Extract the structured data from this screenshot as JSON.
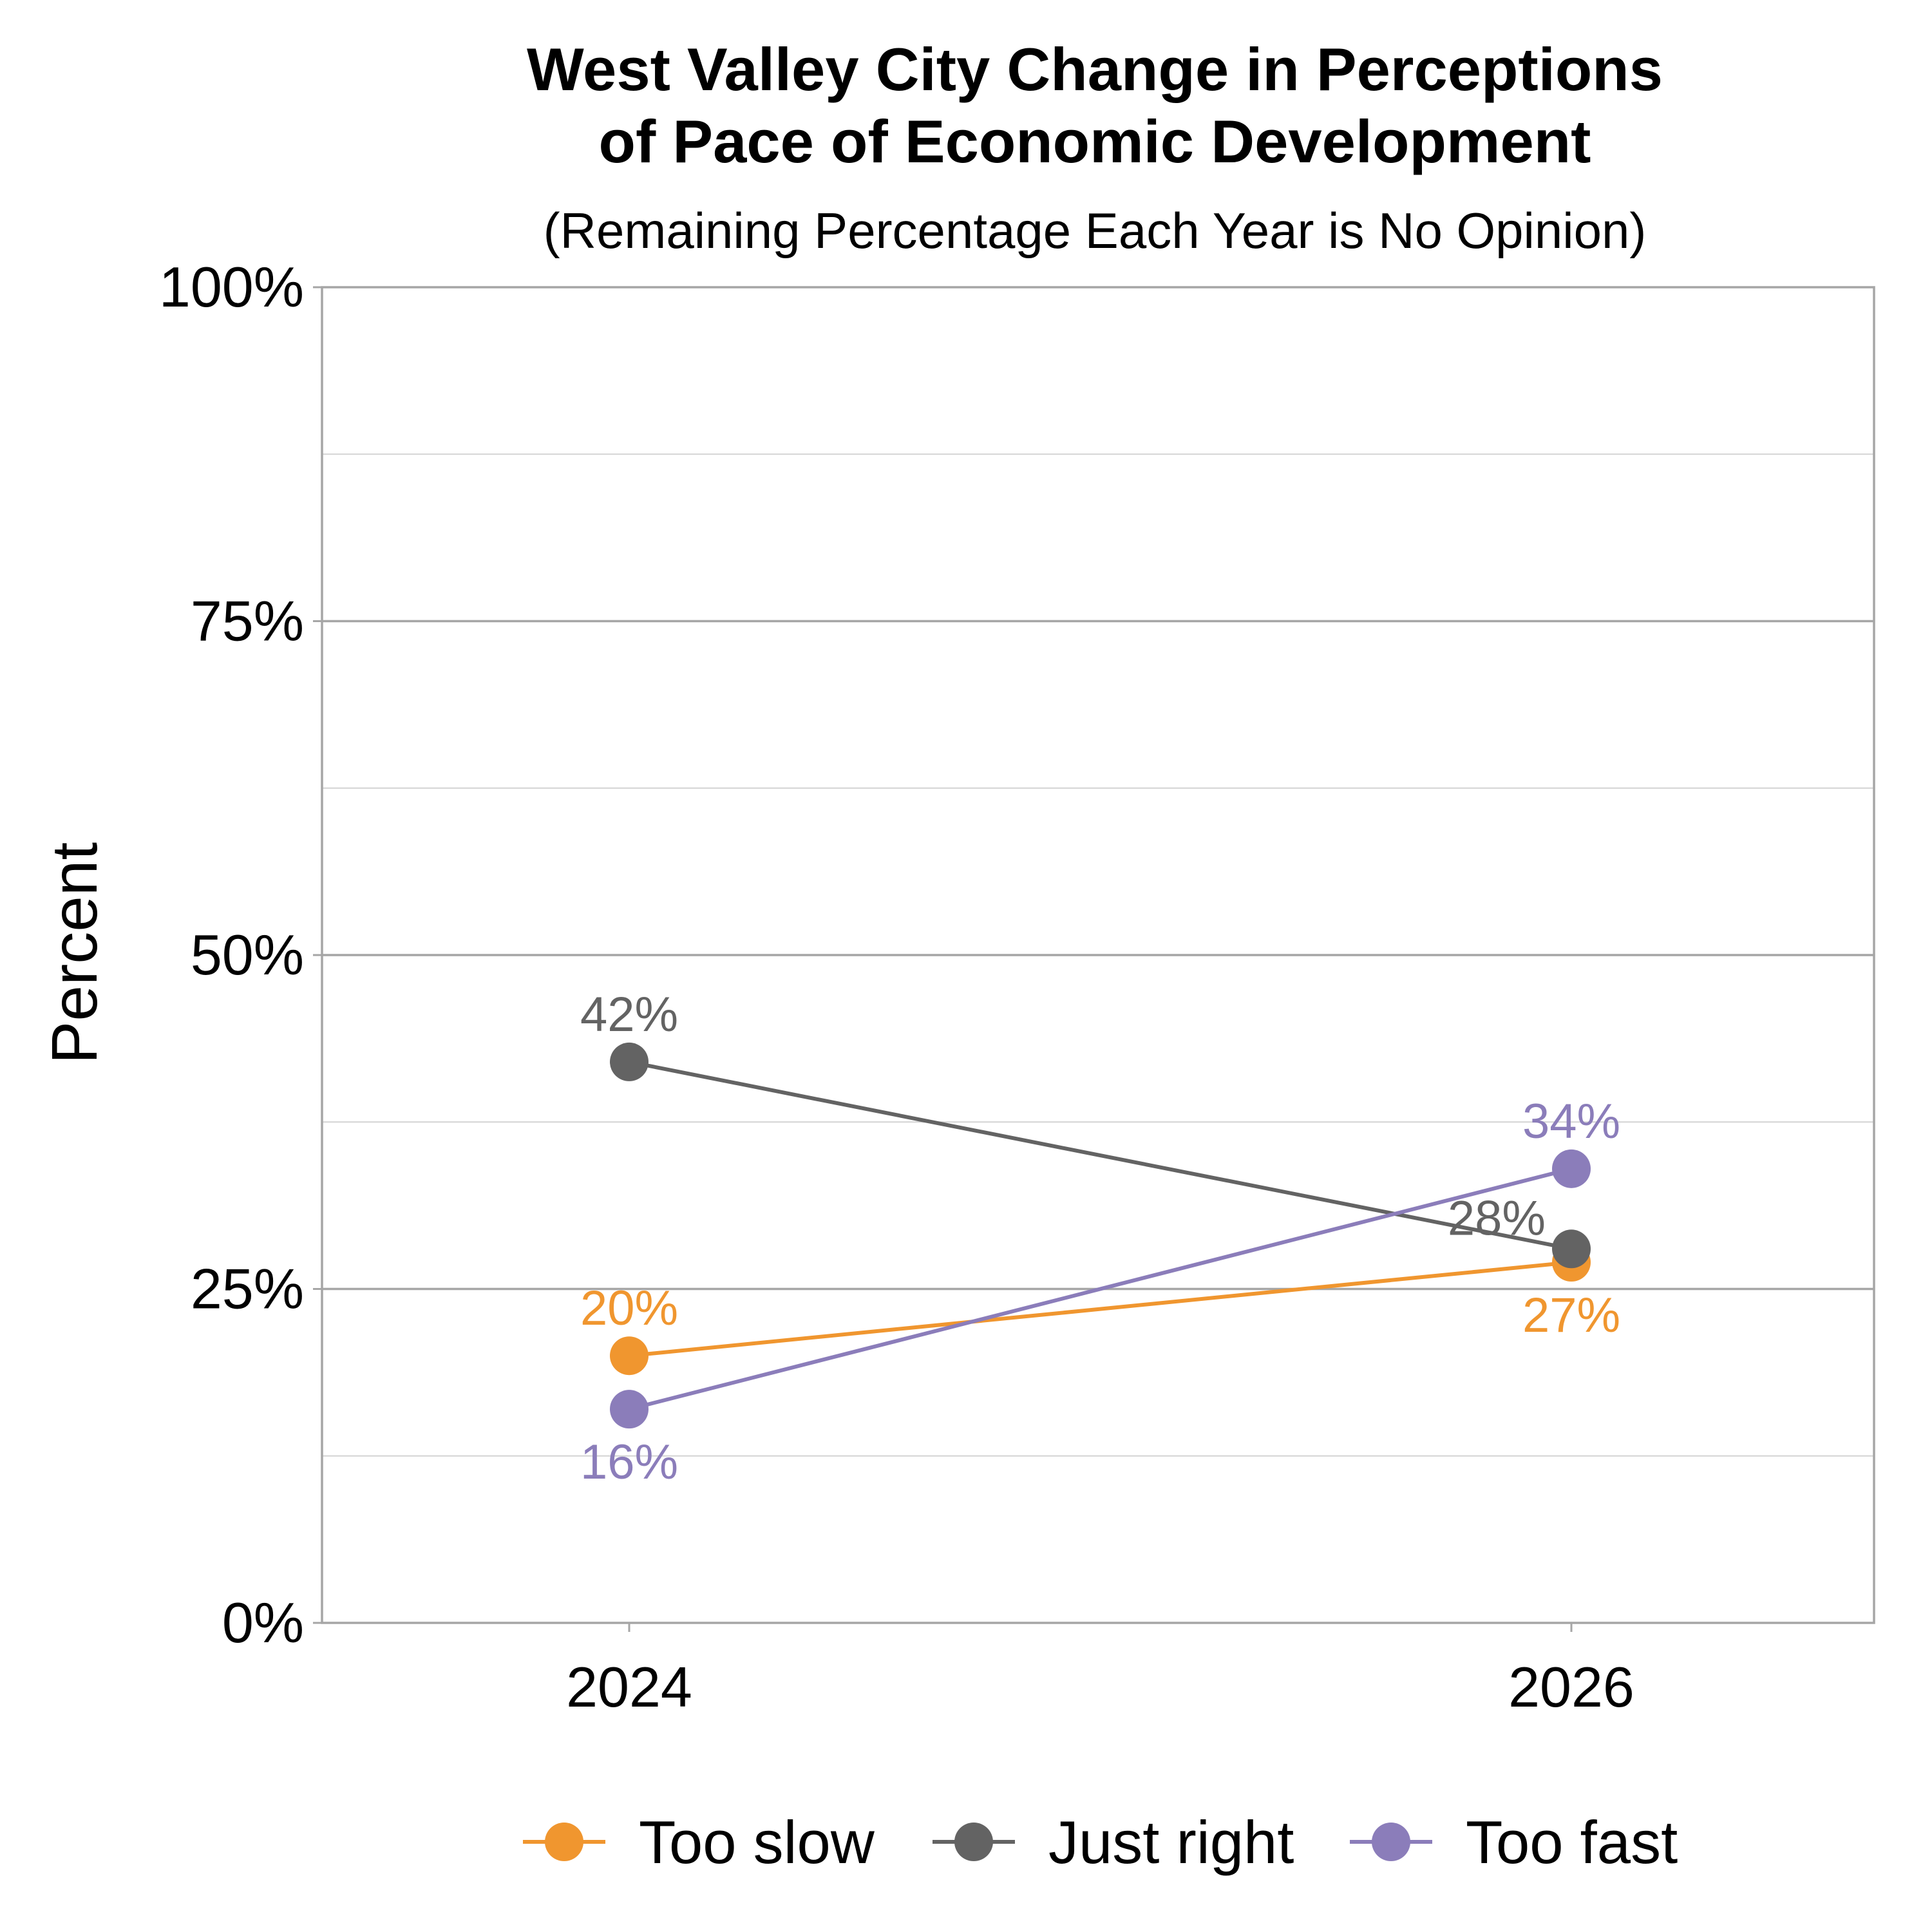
{
  "chart_data": {
    "type": "line",
    "title_lines": [
      "West Valley City Change in Perceptions",
      "of Pace of Economic Development"
    ],
    "subtitle": "(Remaining Percentage Each Year is No Opinion)",
    "xlabel": "",
    "ylabel": "Percent",
    "categories": [
      "2024",
      "2026"
    ],
    "ylim": [
      0,
      100
    ],
    "y_ticks": [
      0,
      25,
      50,
      75,
      100
    ],
    "y_tick_labels": [
      "0%",
      "25%",
      "50%",
      "75%",
      "100%"
    ],
    "grid": true,
    "legend_position": "bottom",
    "series": [
      {
        "name": "Too slow",
        "color": "#F0962F",
        "values": [
          20,
          27
        ],
        "labels": [
          "20%",
          "27%"
        ],
        "label_side": [
          "above",
          "below"
        ]
      },
      {
        "name": "Just right",
        "color": "#636363",
        "values": [
          42,
          28
        ],
        "labels": [
          "42%",
          "28%"
        ],
        "label_side": [
          "above",
          "left"
        ]
      },
      {
        "name": "Too fast",
        "color": "#8B7DBA",
        "values": [
          16,
          34
        ],
        "labels": [
          "16%",
          "34%"
        ],
        "label_side": [
          "below",
          "above"
        ]
      }
    ]
  }
}
